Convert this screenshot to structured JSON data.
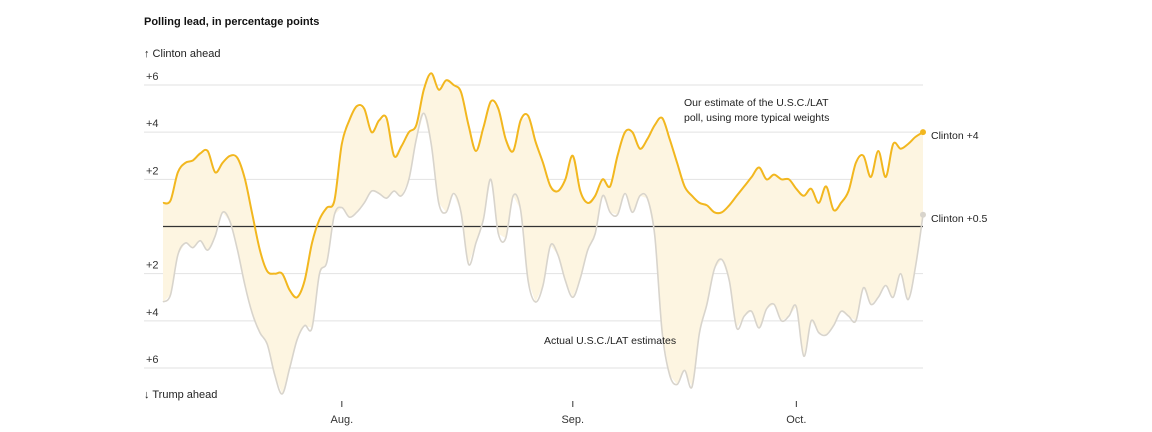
{
  "chart_data": {
    "type": "line",
    "title": "Polling lead, in percentage points",
    "up_label": "↑ Clinton ahead",
    "down_label": "↓ Trump ahead",
    "y_ticks": [
      {
        "value": 6,
        "label": "+6"
      },
      {
        "value": 4,
        "label": "+4"
      },
      {
        "value": 2,
        "label": "+2"
      },
      {
        "value": -2,
        "label": "+2"
      },
      {
        "value": -4,
        "label": "+4"
      },
      {
        "value": -6,
        "label": "+6"
      }
    ],
    "ylim": [
      -7,
      7.5
    ],
    "x_ticks": [
      {
        "date": "2016-08-01",
        "label": "Aug."
      },
      {
        "date": "2016-09-01",
        "label": "Sep."
      },
      {
        "date": "2016-10-01",
        "label": "Oct."
      }
    ],
    "xlim": [
      "2016-07-08",
      "2016-10-19"
    ],
    "grid": true,
    "colors": {
      "estimate": "#f2b71f",
      "actual": "#d8d4cc",
      "fill": "#fdf5e1",
      "zero": "#333333",
      "grid": "#e2e2e2"
    },
    "series": [
      {
        "key": "estimate",
        "values": [
          [
            "2016-07-08",
            1.0
          ],
          [
            "2016-07-09",
            1.1
          ],
          [
            "2016-07-10",
            2.3
          ],
          [
            "2016-07-11",
            2.7
          ],
          [
            "2016-07-12",
            2.8
          ],
          [
            "2016-07-13",
            3.1
          ],
          [
            "2016-07-14",
            3.2
          ],
          [
            "2016-07-15",
            2.3
          ],
          [
            "2016-07-16",
            2.7
          ],
          [
            "2016-07-17",
            3.0
          ],
          [
            "2016-07-18",
            2.9
          ],
          [
            "2016-07-19",
            2.0
          ],
          [
            "2016-07-20",
            0.5
          ],
          [
            "2016-07-21",
            -1.0
          ],
          [
            "2016-07-22",
            -1.9
          ],
          [
            "2016-07-23",
            -2.0
          ],
          [
            "2016-07-24",
            -2.0
          ],
          [
            "2016-07-25",
            -2.7
          ],
          [
            "2016-07-26",
            -3.0
          ],
          [
            "2016-07-27",
            -2.3
          ],
          [
            "2016-07-28",
            -0.7
          ],
          [
            "2016-07-29",
            0.3
          ],
          [
            "2016-07-30",
            0.8
          ],
          [
            "2016-07-31",
            1.1
          ],
          [
            "2016-08-01",
            3.5
          ],
          [
            "2016-08-02",
            4.5
          ],
          [
            "2016-08-03",
            5.1
          ],
          [
            "2016-08-04",
            5.0
          ],
          [
            "2016-08-05",
            4.0
          ],
          [
            "2016-08-06",
            4.5
          ],
          [
            "2016-08-07",
            4.6
          ],
          [
            "2016-08-08",
            3.0
          ],
          [
            "2016-08-09",
            3.4
          ],
          [
            "2016-08-10",
            4.0
          ],
          [
            "2016-08-11",
            4.3
          ],
          [
            "2016-08-12",
            5.8
          ],
          [
            "2016-08-13",
            6.5
          ],
          [
            "2016-08-14",
            5.8
          ],
          [
            "2016-08-15",
            6.2
          ],
          [
            "2016-08-16",
            6.0
          ],
          [
            "2016-08-17",
            5.7
          ],
          [
            "2016-08-18",
            4.3
          ],
          [
            "2016-08-19",
            3.2
          ],
          [
            "2016-08-20",
            4.2
          ],
          [
            "2016-08-21",
            5.3
          ],
          [
            "2016-08-22",
            5.0
          ],
          [
            "2016-08-23",
            3.7
          ],
          [
            "2016-08-24",
            3.2
          ],
          [
            "2016-08-25",
            4.5
          ],
          [
            "2016-08-26",
            4.7
          ],
          [
            "2016-08-27",
            3.6
          ],
          [
            "2016-08-28",
            2.7
          ],
          [
            "2016-08-29",
            1.7
          ],
          [
            "2016-08-30",
            1.5
          ],
          [
            "2016-08-31",
            2.0
          ],
          [
            "2016-09-01",
            3.0
          ],
          [
            "2016-09-02",
            1.5
          ],
          [
            "2016-09-03",
            1.0
          ],
          [
            "2016-09-04",
            1.3
          ],
          [
            "2016-09-05",
            2.0
          ],
          [
            "2016-09-06",
            1.7
          ],
          [
            "2016-09-07",
            3.0
          ],
          [
            "2016-09-08",
            4.0
          ],
          [
            "2016-09-09",
            4.0
          ],
          [
            "2016-09-10",
            3.3
          ],
          [
            "2016-09-11",
            3.7
          ],
          [
            "2016-09-12",
            4.3
          ],
          [
            "2016-09-13",
            4.6
          ],
          [
            "2016-09-14",
            3.7
          ],
          [
            "2016-09-15",
            2.7
          ],
          [
            "2016-09-16",
            1.7
          ],
          [
            "2016-09-17",
            1.3
          ],
          [
            "2016-09-18",
            1.0
          ],
          [
            "2016-09-19",
            0.9
          ],
          [
            "2016-09-20",
            0.6
          ],
          [
            "2016-09-21",
            0.6
          ],
          [
            "2016-09-22",
            0.9
          ],
          [
            "2016-09-23",
            1.3
          ],
          [
            "2016-09-24",
            1.7
          ],
          [
            "2016-09-25",
            2.1
          ],
          [
            "2016-09-26",
            2.5
          ],
          [
            "2016-09-27",
            2.0
          ],
          [
            "2016-09-28",
            2.2
          ],
          [
            "2016-09-29",
            2.0
          ],
          [
            "2016-09-30",
            2.0
          ],
          [
            "2016-10-01",
            1.6
          ],
          [
            "2016-10-02",
            1.3
          ],
          [
            "2016-10-03",
            1.6
          ],
          [
            "2016-10-04",
            1.0
          ],
          [
            "2016-10-05",
            1.7
          ],
          [
            "2016-10-06",
            0.7
          ],
          [
            "2016-10-07",
            1.0
          ],
          [
            "2016-10-08",
            1.5
          ],
          [
            "2016-10-09",
            2.7
          ],
          [
            "2016-10-10",
            3.0
          ],
          [
            "2016-10-11",
            2.1
          ],
          [
            "2016-10-12",
            3.2
          ],
          [
            "2016-10-13",
            2.1
          ],
          [
            "2016-10-14",
            3.5
          ],
          [
            "2016-10-15",
            3.3
          ],
          [
            "2016-10-16",
            3.5
          ],
          [
            "2016-10-17",
            3.8
          ],
          [
            "2016-10-18",
            4.0
          ]
        ]
      },
      {
        "key": "actual",
        "values": [
          [
            "2016-07-08",
            -3.2
          ],
          [
            "2016-07-09",
            -2.9
          ],
          [
            "2016-07-10",
            -1.2
          ],
          [
            "2016-07-11",
            -0.7
          ],
          [
            "2016-07-12",
            -0.9
          ],
          [
            "2016-07-13",
            -0.6
          ],
          [
            "2016-07-14",
            -1.0
          ],
          [
            "2016-07-15",
            -0.4
          ],
          [
            "2016-07-16",
            0.6
          ],
          [
            "2016-07-17",
            0.2
          ],
          [
            "2016-07-18",
            -1.0
          ],
          [
            "2016-07-19",
            -2.5
          ],
          [
            "2016-07-20",
            -3.7
          ],
          [
            "2016-07-21",
            -4.5
          ],
          [
            "2016-07-22",
            -5.0
          ],
          [
            "2016-07-23",
            -6.3
          ],
          [
            "2016-07-24",
            -7.1
          ],
          [
            "2016-07-25",
            -6.0
          ],
          [
            "2016-07-26",
            -4.8
          ],
          [
            "2016-07-27",
            -4.2
          ],
          [
            "2016-07-28",
            -4.3
          ],
          [
            "2016-07-29",
            -2.0
          ],
          [
            "2016-07-30",
            -1.5
          ],
          [
            "2016-07-31",
            0.5
          ],
          [
            "2016-08-01",
            0.8
          ],
          [
            "2016-08-02",
            0.4
          ],
          [
            "2016-08-03",
            0.6
          ],
          [
            "2016-08-04",
            1.0
          ],
          [
            "2016-08-05",
            1.5
          ],
          [
            "2016-08-06",
            1.4
          ],
          [
            "2016-08-07",
            1.2
          ],
          [
            "2016-08-08",
            1.5
          ],
          [
            "2016-08-09",
            1.3
          ],
          [
            "2016-08-10",
            2.0
          ],
          [
            "2016-08-11",
            3.7
          ],
          [
            "2016-08-12",
            4.8
          ],
          [
            "2016-08-13",
            3.5
          ],
          [
            "2016-08-14",
            1.0
          ],
          [
            "2016-08-15",
            0.6
          ],
          [
            "2016-08-16",
            1.4
          ],
          [
            "2016-08-17",
            0.6
          ],
          [
            "2016-08-18",
            -1.6
          ],
          [
            "2016-08-19",
            -0.7
          ],
          [
            "2016-08-20",
            0.3
          ],
          [
            "2016-08-21",
            2.0
          ],
          [
            "2016-08-22",
            -0.3
          ],
          [
            "2016-08-23",
            -0.5
          ],
          [
            "2016-08-24",
            1.3
          ],
          [
            "2016-08-25",
            0.7
          ],
          [
            "2016-08-26",
            -2.3
          ],
          [
            "2016-08-27",
            -3.2
          ],
          [
            "2016-08-28",
            -2.5
          ],
          [
            "2016-08-29",
            -0.8
          ],
          [
            "2016-08-30",
            -1.2
          ],
          [
            "2016-08-31",
            -2.3
          ],
          [
            "2016-09-01",
            -3.0
          ],
          [
            "2016-09-02",
            -2.2
          ],
          [
            "2016-09-03",
            -1.0
          ],
          [
            "2016-09-04",
            -0.3
          ],
          [
            "2016-09-05",
            1.3
          ],
          [
            "2016-09-06",
            0.6
          ],
          [
            "2016-09-07",
            0.5
          ],
          [
            "2016-09-08",
            1.4
          ],
          [
            "2016-09-09",
            0.6
          ],
          [
            "2016-09-10",
            1.3
          ],
          [
            "2016-09-11",
            1.2
          ],
          [
            "2016-09-12",
            -0.4
          ],
          [
            "2016-09-13",
            -4.5
          ],
          [
            "2016-09-14",
            -6.3
          ],
          [
            "2016-09-15",
            -6.7
          ],
          [
            "2016-09-16",
            -6.1
          ],
          [
            "2016-09-17",
            -6.8
          ],
          [
            "2016-09-18",
            -4.5
          ],
          [
            "2016-09-19",
            -3.3
          ],
          [
            "2016-09-20",
            -1.8
          ],
          [
            "2016-09-21",
            -1.4
          ],
          [
            "2016-09-22",
            -2.3
          ],
          [
            "2016-09-23",
            -4.3
          ],
          [
            "2016-09-24",
            -3.8
          ],
          [
            "2016-09-25",
            -3.6
          ],
          [
            "2016-09-26",
            -4.3
          ],
          [
            "2016-09-27",
            -3.5
          ],
          [
            "2016-09-28",
            -3.3
          ],
          [
            "2016-09-29",
            -4.0
          ],
          [
            "2016-09-30",
            -3.8
          ],
          [
            "2016-10-01",
            -3.4
          ],
          [
            "2016-10-02",
            -5.5
          ],
          [
            "2016-10-03",
            -4.0
          ],
          [
            "2016-10-04",
            -4.5
          ],
          [
            "2016-10-05",
            -4.6
          ],
          [
            "2016-10-06",
            -4.2
          ],
          [
            "2016-10-07",
            -3.6
          ],
          [
            "2016-10-08",
            -3.8
          ],
          [
            "2016-10-09",
            -4.0
          ],
          [
            "2016-10-10",
            -2.6
          ],
          [
            "2016-10-11",
            -3.3
          ],
          [
            "2016-10-12",
            -3.0
          ],
          [
            "2016-10-13",
            -2.5
          ],
          [
            "2016-10-14",
            -3.0
          ],
          [
            "2016-10-15",
            -2.0
          ],
          [
            "2016-10-16",
            -3.1
          ],
          [
            "2016-10-17",
            -1.7
          ],
          [
            "2016-10-18",
            0.5
          ]
        ]
      }
    ],
    "annotations": {
      "estimate_note_line1": "Our estimate of the  U.S.C./LAT",
      "estimate_note_line2": "poll, using more typical weights",
      "actual_note": "Actual U.S.C./LAT estimates",
      "end_label_estimate": "Clinton +4",
      "end_label_actual": "Clinton +0.5"
    }
  }
}
